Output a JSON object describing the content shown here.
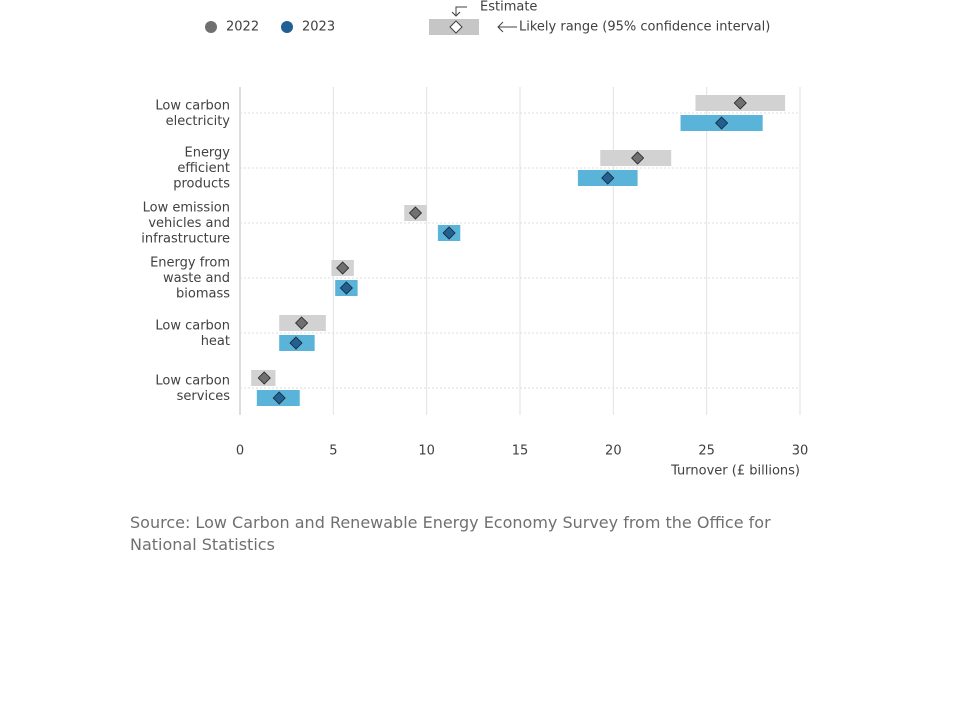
{
  "chart_data": {
    "type": "range-dot",
    "categories": [
      "Low carbon electricity",
      "Energy efficient products",
      "Low emission vehicles and infrastructure",
      "Energy from waste and biomass",
      "Low carbon heat",
      "Low carbon services"
    ],
    "series": [
      {
        "name": "2022",
        "color": "#707071",
        "range_color": "#d2d2d2",
        "values": [
          26.8,
          21.3,
          9.4,
          5.5,
          3.3,
          1.3
        ],
        "lower": [
          24.4,
          19.3,
          8.8,
          4.9,
          2.1,
          0.6
        ],
        "upper": [
          29.2,
          23.1,
          10.0,
          6.1,
          4.6,
          1.9
        ]
      },
      {
        "name": "2023",
        "color": "#206095",
        "range_color": "#5ab4d9",
        "values": [
          25.8,
          19.7,
          11.2,
          5.7,
          3.0,
          2.1
        ],
        "lower": [
          23.6,
          18.1,
          10.6,
          5.1,
          2.1,
          0.9
        ],
        "upper": [
          28.0,
          21.3,
          11.8,
          6.3,
          4.0,
          3.2
        ]
      }
    ],
    "legend_estimate": "Estimate",
    "legend_range": "Likely range (95% confidence interval)",
    "xlabel": "Turnover (£ billions)",
    "xlim": [
      0,
      30
    ],
    "xticks": [
      0,
      5,
      10,
      15,
      20,
      25,
      30
    ],
    "grid": true,
    "source": "Source: Low Carbon and Renewable Energy Economy Survey from the Office for National Statistics"
  }
}
